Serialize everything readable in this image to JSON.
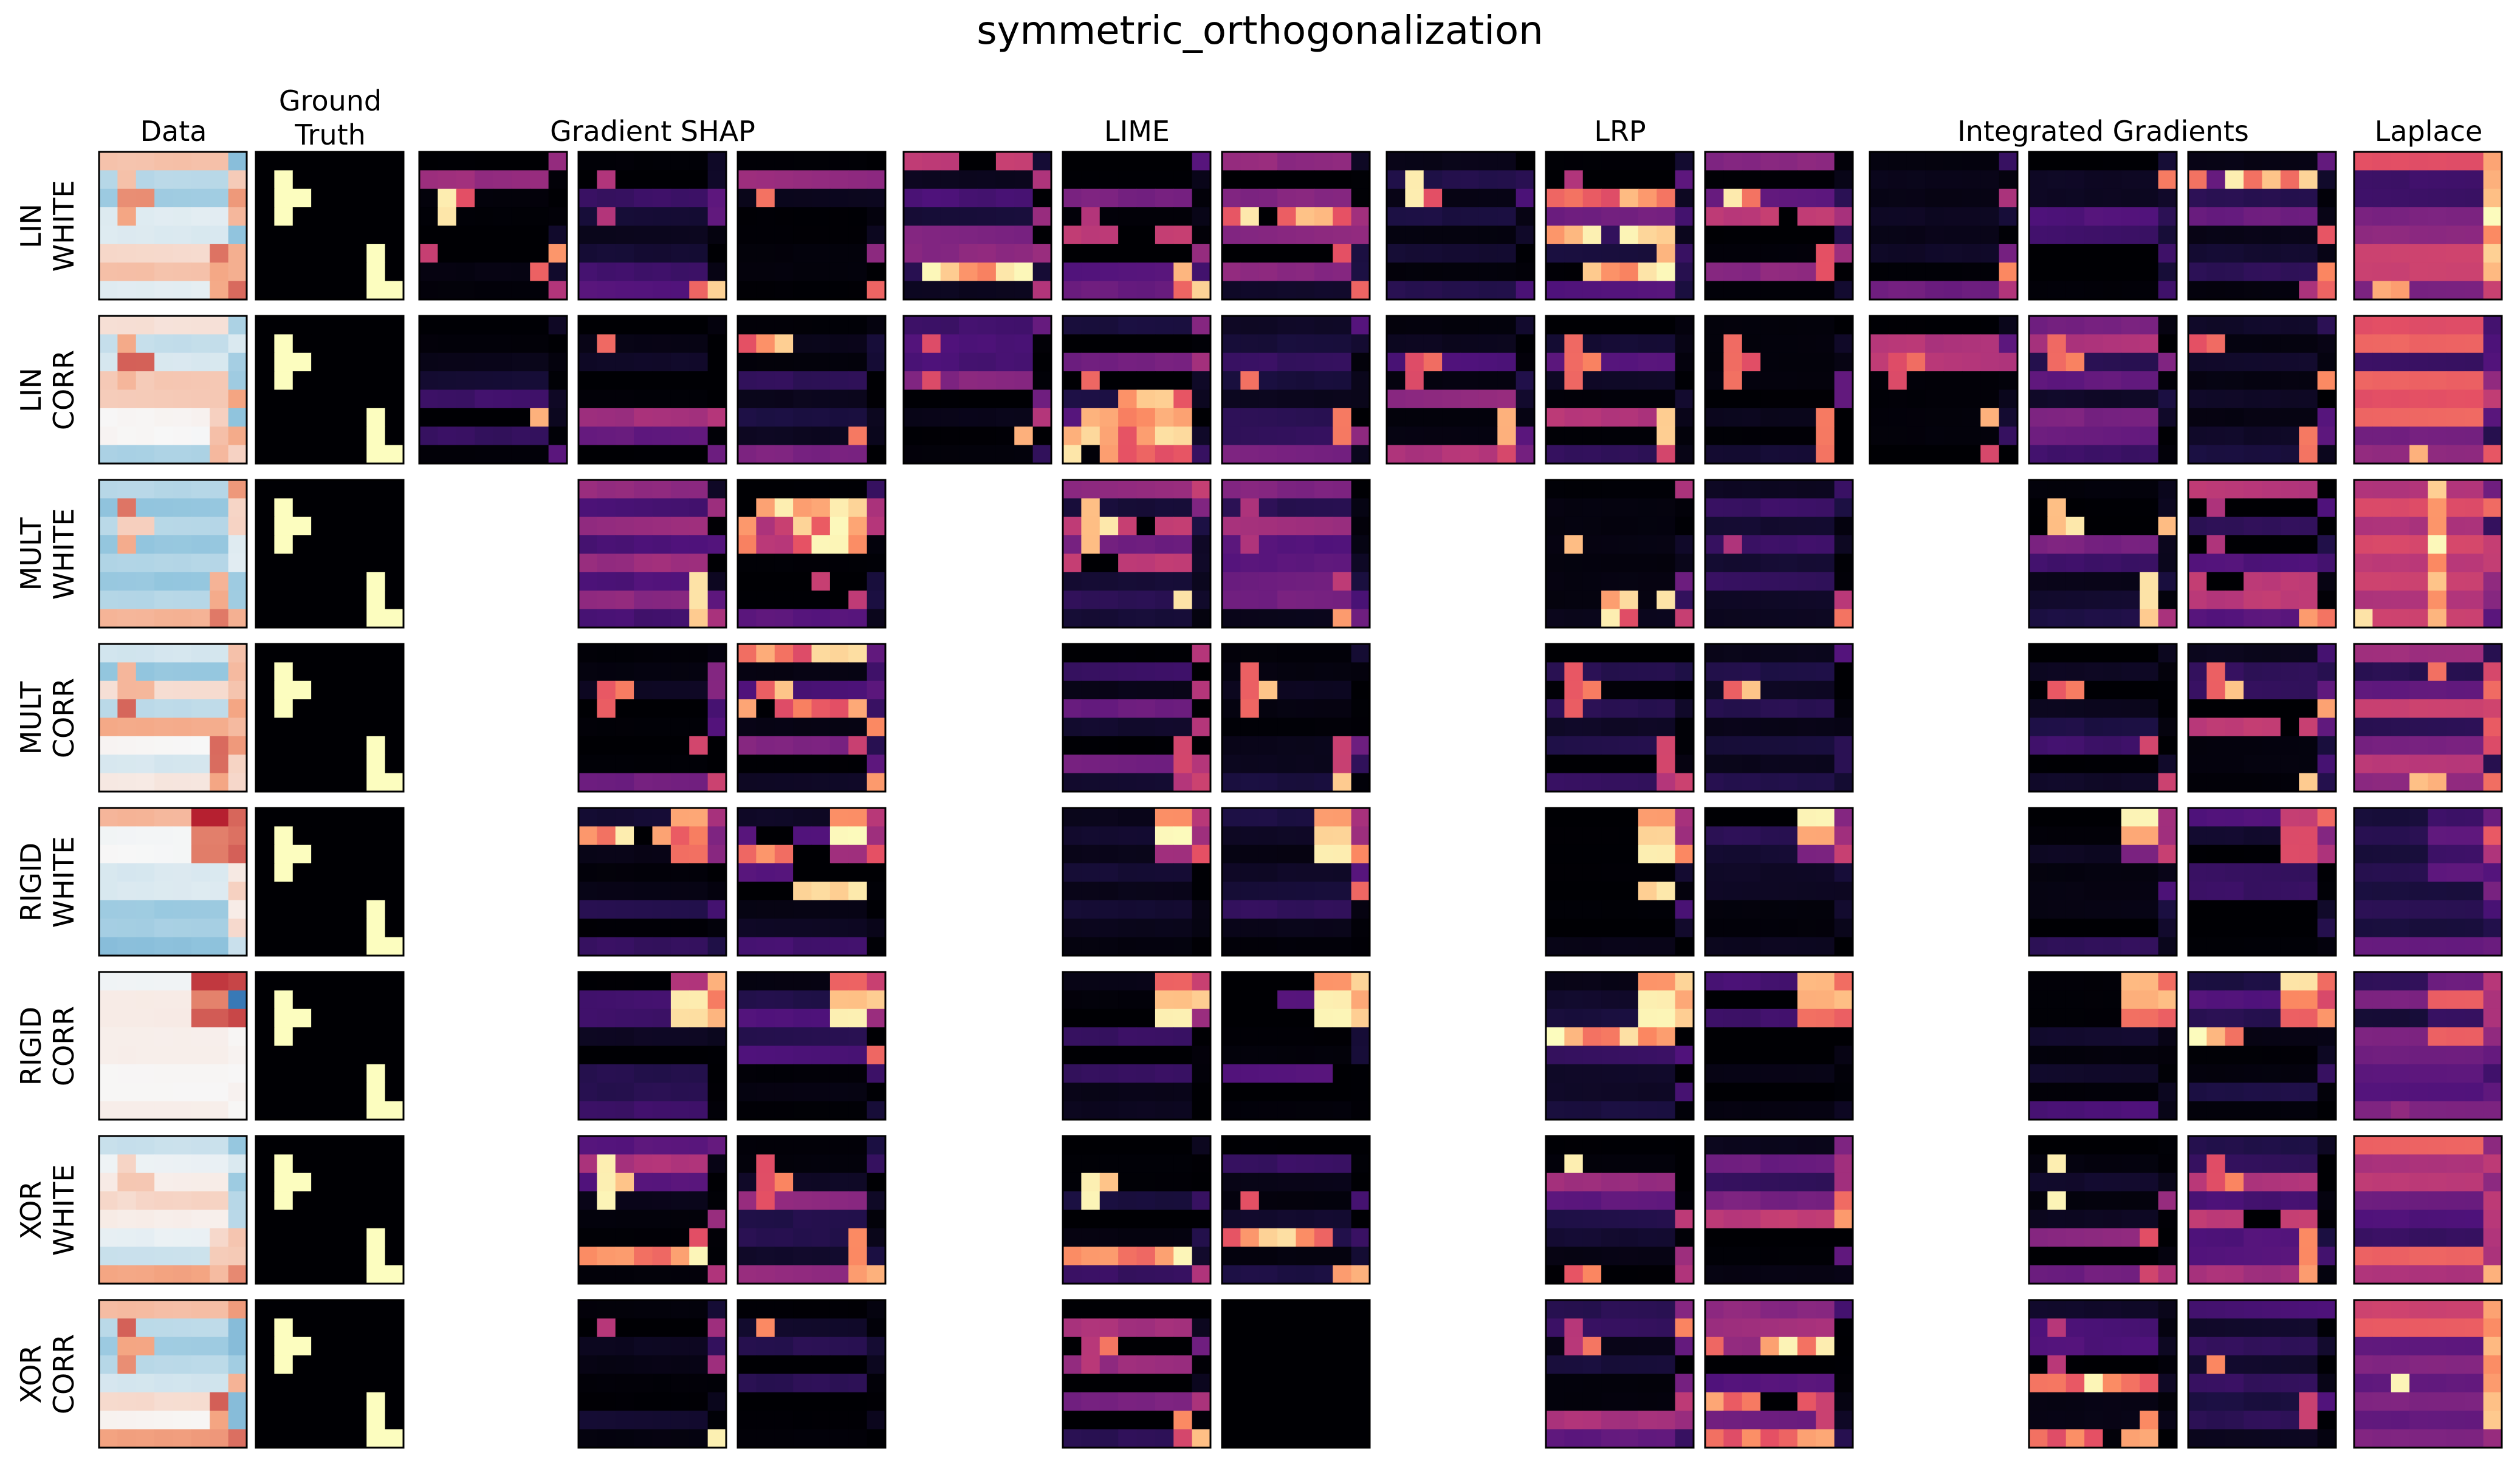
{
  "title": "symmetric_orthogonalization",
  "chart_data": {
    "type": "heatmap",
    "title": "symmetric_orthogonalization",
    "column_headers": [
      {
        "label": "Data"
      },
      {
        "label_line1": "Ground",
        "label_line2": "Truth"
      },
      {
        "label": "Gradient SHAP"
      },
      {
        "label": "LIME"
      },
      {
        "label": "LRP"
      },
      {
        "label": "Integrated Gradients"
      },
      {
        "label": "Laplace"
      }
    ],
    "rows": [
      {
        "line1": "LIN",
        "line2": "WHITE",
        "available_methods": [
          "Data",
          "Ground Truth",
          "Gradient SHAP",
          "LIME",
          "LRP",
          "Integrated Gradients",
          "Laplace"
        ]
      },
      {
        "line1": "LIN",
        "line2": "CORR",
        "available_methods": [
          "Data",
          "Ground Truth",
          "Gradient SHAP",
          "LIME",
          "LRP",
          "Integrated Gradients",
          "Laplace"
        ]
      },
      {
        "line1": "MULT",
        "line2": "WHITE",
        "available_methods": [
          "Data",
          "Ground Truth",
          "Gradient SHAP",
          "LIME",
          "LRP",
          "Integrated Gradients",
          "Laplace"
        ]
      },
      {
        "line1": "MULT",
        "line2": "CORR",
        "available_methods": [
          "Data",
          "Ground Truth",
          "Gradient SHAP",
          "LIME",
          "LRP",
          "Integrated Gradients",
          "Laplace"
        ]
      },
      {
        "line1": "RIGID",
        "line2": "WHITE",
        "available_methods": [
          "Data",
          "Ground Truth",
          "Gradient SHAP",
          "LIME",
          "LRP",
          "Integrated Gradients",
          "Laplace"
        ]
      },
      {
        "line1": "RIGID",
        "line2": "CORR",
        "available_methods": [
          "Data",
          "Ground Truth",
          "Gradient SHAP",
          "LIME",
          "LRP",
          "Integrated Gradients",
          "Laplace"
        ]
      },
      {
        "line1": "XOR",
        "line2": "WHITE",
        "available_methods": [
          "Data",
          "Ground Truth",
          "Gradient SHAP",
          "LIME",
          "LRP",
          "Integrated Gradients",
          "Laplace"
        ]
      },
      {
        "line1": "XOR",
        "line2": "CORR",
        "available_methods": [
          "Data",
          "Ground Truth",
          "Gradient SHAP",
          "LIME",
          "LRP",
          "Integrated Gradients",
          "Laplace"
        ]
      }
    ],
    "grid_size": 8,
    "models_per_method": 3,
    "first_model_only_rows": [
      "LIN WHITE",
      "LIN CORR"
    ],
    "ground_truth_cells": [
      [
        1,
        1
      ],
      [
        2,
        1
      ],
      [
        3,
        1
      ],
      [
        2,
        2
      ],
      [
        5,
        6
      ],
      [
        6,
        6
      ],
      [
        7,
        6
      ],
      [
        7,
        7
      ]
    ],
    "colormaps": {
      "data": "diverging blue-white-red",
      "explanations": "magma",
      "ground_truth": "black background, light yellow pattern"
    },
    "colors": {
      "background": "#ffffff",
      "heatmap_zero": "#000004",
      "ground_truth_fill": "#fcfdbf",
      "data_low": "#2166ac",
      "data_high": "#b2182b"
    }
  }
}
